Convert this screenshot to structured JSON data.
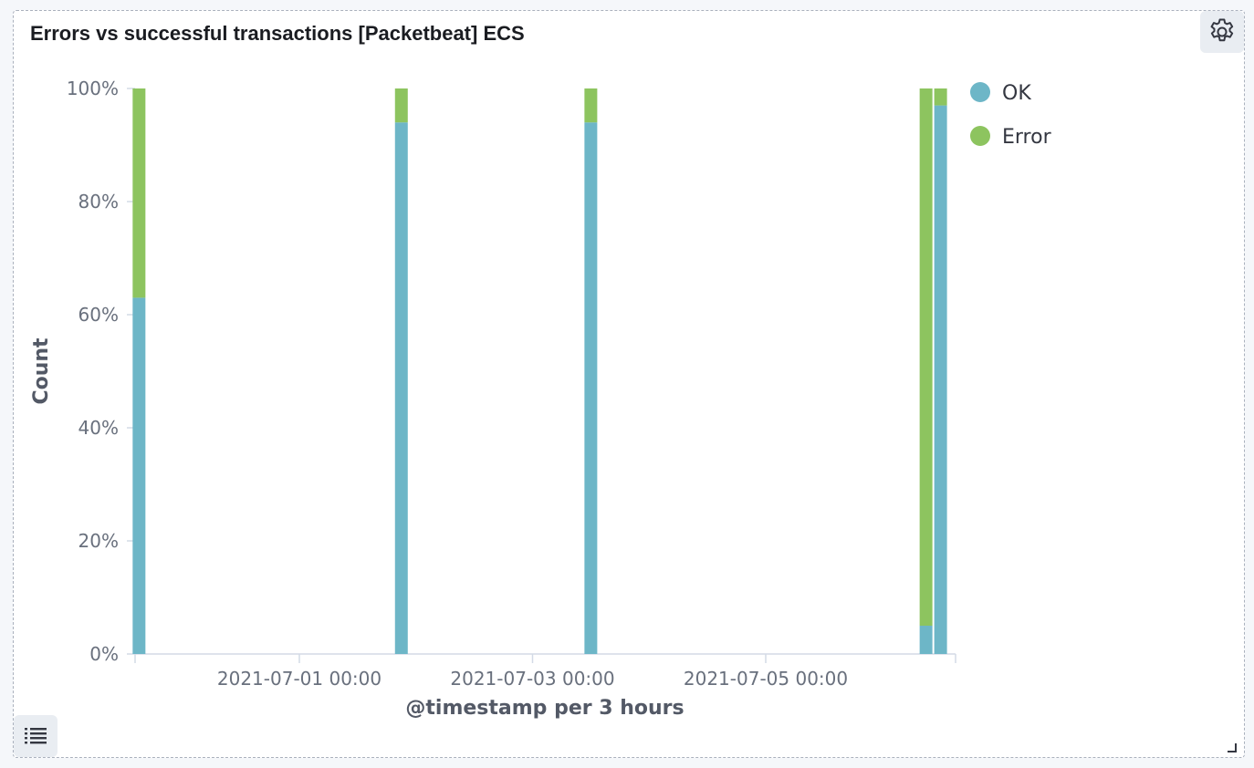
{
  "panel": {
    "title": "Errors vs successful transactions [Packetbeat] ECS"
  },
  "icons": {
    "settings": "gear-icon",
    "legend_toggle": "list-icon",
    "resize": "resize-corner-icon"
  },
  "chart_data": {
    "type": "bar",
    "stacked": "percentage",
    "title": "Errors vs successful transactions [Packetbeat] ECS",
    "xlabel": "@timestamp per 3 hours",
    "ylabel": "Count",
    "x_tick_labels": [
      "2021-07-01 00:00",
      "2021-07-03 00:00",
      "2021-07-05 00:00"
    ],
    "y_tick_labels": [
      "0%",
      "20%",
      "40%",
      "60%",
      "80%",
      "100%"
    ],
    "ylim": [
      0,
      100
    ],
    "grid": false,
    "legend_position": "right",
    "categories": [
      "2021-06-29 15:00",
      "2021-07-01 21:00",
      "2021-07-03 12:00",
      "2021-07-06 09:00",
      "2021-07-06 12:00"
    ],
    "series": [
      {
        "name": "OK",
        "color": "#6092c0",
        "display_color": "#6db6c7",
        "values": [
          63,
          94,
          94,
          5,
          97
        ]
      },
      {
        "name": "Error",
        "color": "#8bc35a",
        "display_color": "#8dc45f",
        "values": [
          37,
          6,
          6,
          95,
          3
        ]
      }
    ]
  }
}
